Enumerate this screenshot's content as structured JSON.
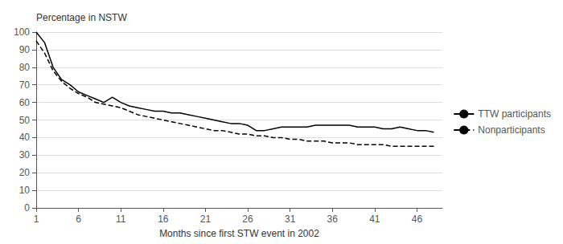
{
  "chart_data": {
    "type": "line",
    "xlabel": "Months since first STW event in 2002",
    "ylabel": "Percentage in NSTW",
    "x": [
      1,
      2,
      3,
      4,
      5,
      6,
      7,
      8,
      9,
      10,
      11,
      12,
      13,
      14,
      15,
      16,
      17,
      18,
      19,
      20,
      21,
      22,
      23,
      24,
      25,
      26,
      27,
      28,
      29,
      30,
      31,
      32,
      33,
      34,
      35,
      36,
      37,
      38,
      39,
      40,
      41,
      42,
      43,
      44,
      45,
      46,
      47,
      48
    ],
    "series": [
      {
        "name": "TTW participants",
        "color": "#000000",
        "line_style": "solid",
        "values": [
          100,
          94,
          80,
          73,
          70,
          66,
          64,
          62,
          60,
          63,
          60,
          58,
          57,
          56,
          55,
          55,
          54,
          54,
          53,
          52,
          51,
          50,
          49,
          48,
          48,
          47,
          44,
          44,
          45,
          46,
          46,
          46,
          46,
          47,
          47,
          47,
          47,
          47,
          46,
          46,
          46,
          45,
          45,
          46,
          45,
          44,
          44,
          43
        ]
      },
      {
        "name": "Nonparticipants",
        "color": "#000000",
        "line_style": "dashed",
        "values": [
          95,
          88,
          78,
          72,
          68,
          65,
          63,
          60,
          59,
          58,
          57,
          55,
          53,
          52,
          51,
          50,
          49,
          48,
          47,
          46,
          45,
          44,
          44,
          43,
          42,
          42,
          41,
          41,
          40,
          40,
          39,
          39,
          38,
          38,
          38,
          37,
          37,
          37,
          36,
          36,
          36,
          36,
          35,
          35,
          35,
          35,
          35,
          35
        ]
      }
    ],
    "xlim": [
      1,
      49
    ],
    "xticks": [
      1,
      6,
      11,
      16,
      21,
      26,
      31,
      36,
      41,
      46
    ],
    "ylim": [
      0,
      100
    ],
    "yticks": [
      0,
      10,
      20,
      30,
      40,
      50,
      60,
      70,
      80,
      90,
      100
    ],
    "grid": true,
    "legend": "right"
  }
}
